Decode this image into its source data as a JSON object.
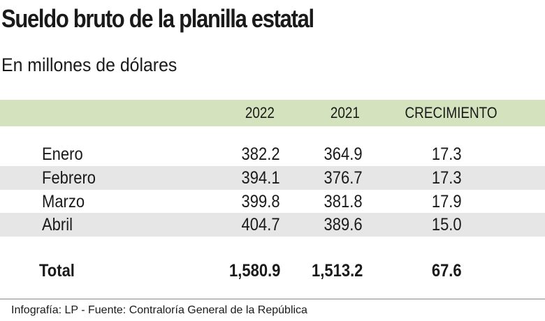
{
  "title": "Sueldo bruto de la planilla estatal",
  "subtitle": "En millones de dólares",
  "table": {
    "header": [
      "2022",
      "2021",
      "CRECIMIENTO"
    ],
    "rows": [
      [
        "Enero",
        "382.2",
        "364.9",
        "17.3"
      ],
      [
        "Febrero",
        "394.1",
        "376.7",
        "17.3"
      ],
      [
        "Marzo",
        "399.8",
        "381.8",
        "17.9"
      ],
      [
        "Abril",
        "404.7",
        "389.6",
        "15.0"
      ]
    ],
    "total": [
      "Total",
      "1,580.9",
      "1,513.2",
      "67.6"
    ]
  },
  "footer": "Infografía: LP - Fuente: Contraloría General de la República"
}
